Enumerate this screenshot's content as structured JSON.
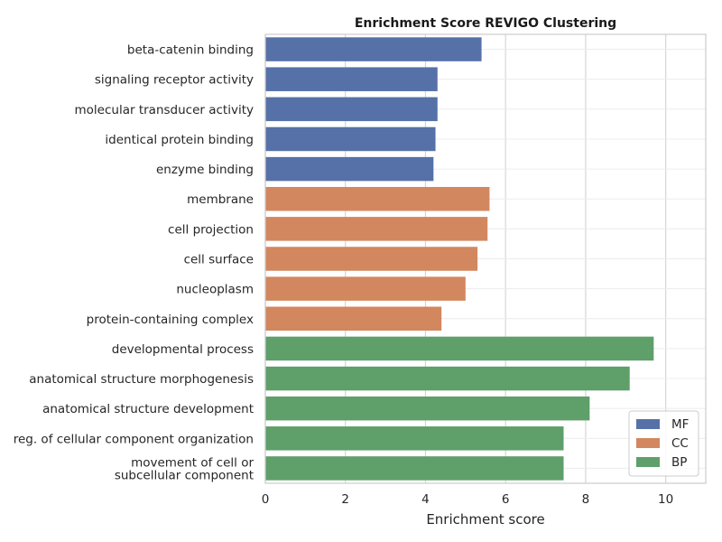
{
  "chart_data": {
    "type": "bar",
    "orientation": "horizontal",
    "title": "Enrichment Score REVIGO Clustering",
    "xlabel": "Enrichment score",
    "ylabel": "",
    "xlim": [
      0,
      11
    ],
    "xticks": [
      0,
      2,
      4,
      6,
      8,
      10
    ],
    "grid": true,
    "legend_position": "bottom-right",
    "categories": [
      "beta-catenin binding",
      "signaling receptor activity",
      "molecular transducer activity",
      "identical protein binding",
      "enzyme binding",
      "membrane",
      "cell projection",
      "cell surface",
      "nucleoplasm",
      "protein-containing complex",
      "developmental process",
      "anatomical structure morphogenesis",
      "anatomical structure development",
      "reg. of cellular component organization",
      "movement of cell or\nsubcellular component"
    ],
    "values": [
      5.4,
      4.3,
      4.3,
      4.25,
      4.2,
      5.6,
      5.55,
      5.3,
      5.0,
      4.4,
      9.7,
      9.1,
      8.1,
      7.45,
      7.45
    ],
    "groups": [
      "MF",
      "MF",
      "MF",
      "MF",
      "MF",
      "CC",
      "CC",
      "CC",
      "CC",
      "CC",
      "BP",
      "BP",
      "BP",
      "BP",
      "BP"
    ],
    "legend": [
      {
        "name": "MF",
        "color": "#5571a8"
      },
      {
        "name": "CC",
        "color": "#d3875f"
      },
      {
        "name": "BP",
        "color": "#5e9f6a"
      }
    ]
  }
}
